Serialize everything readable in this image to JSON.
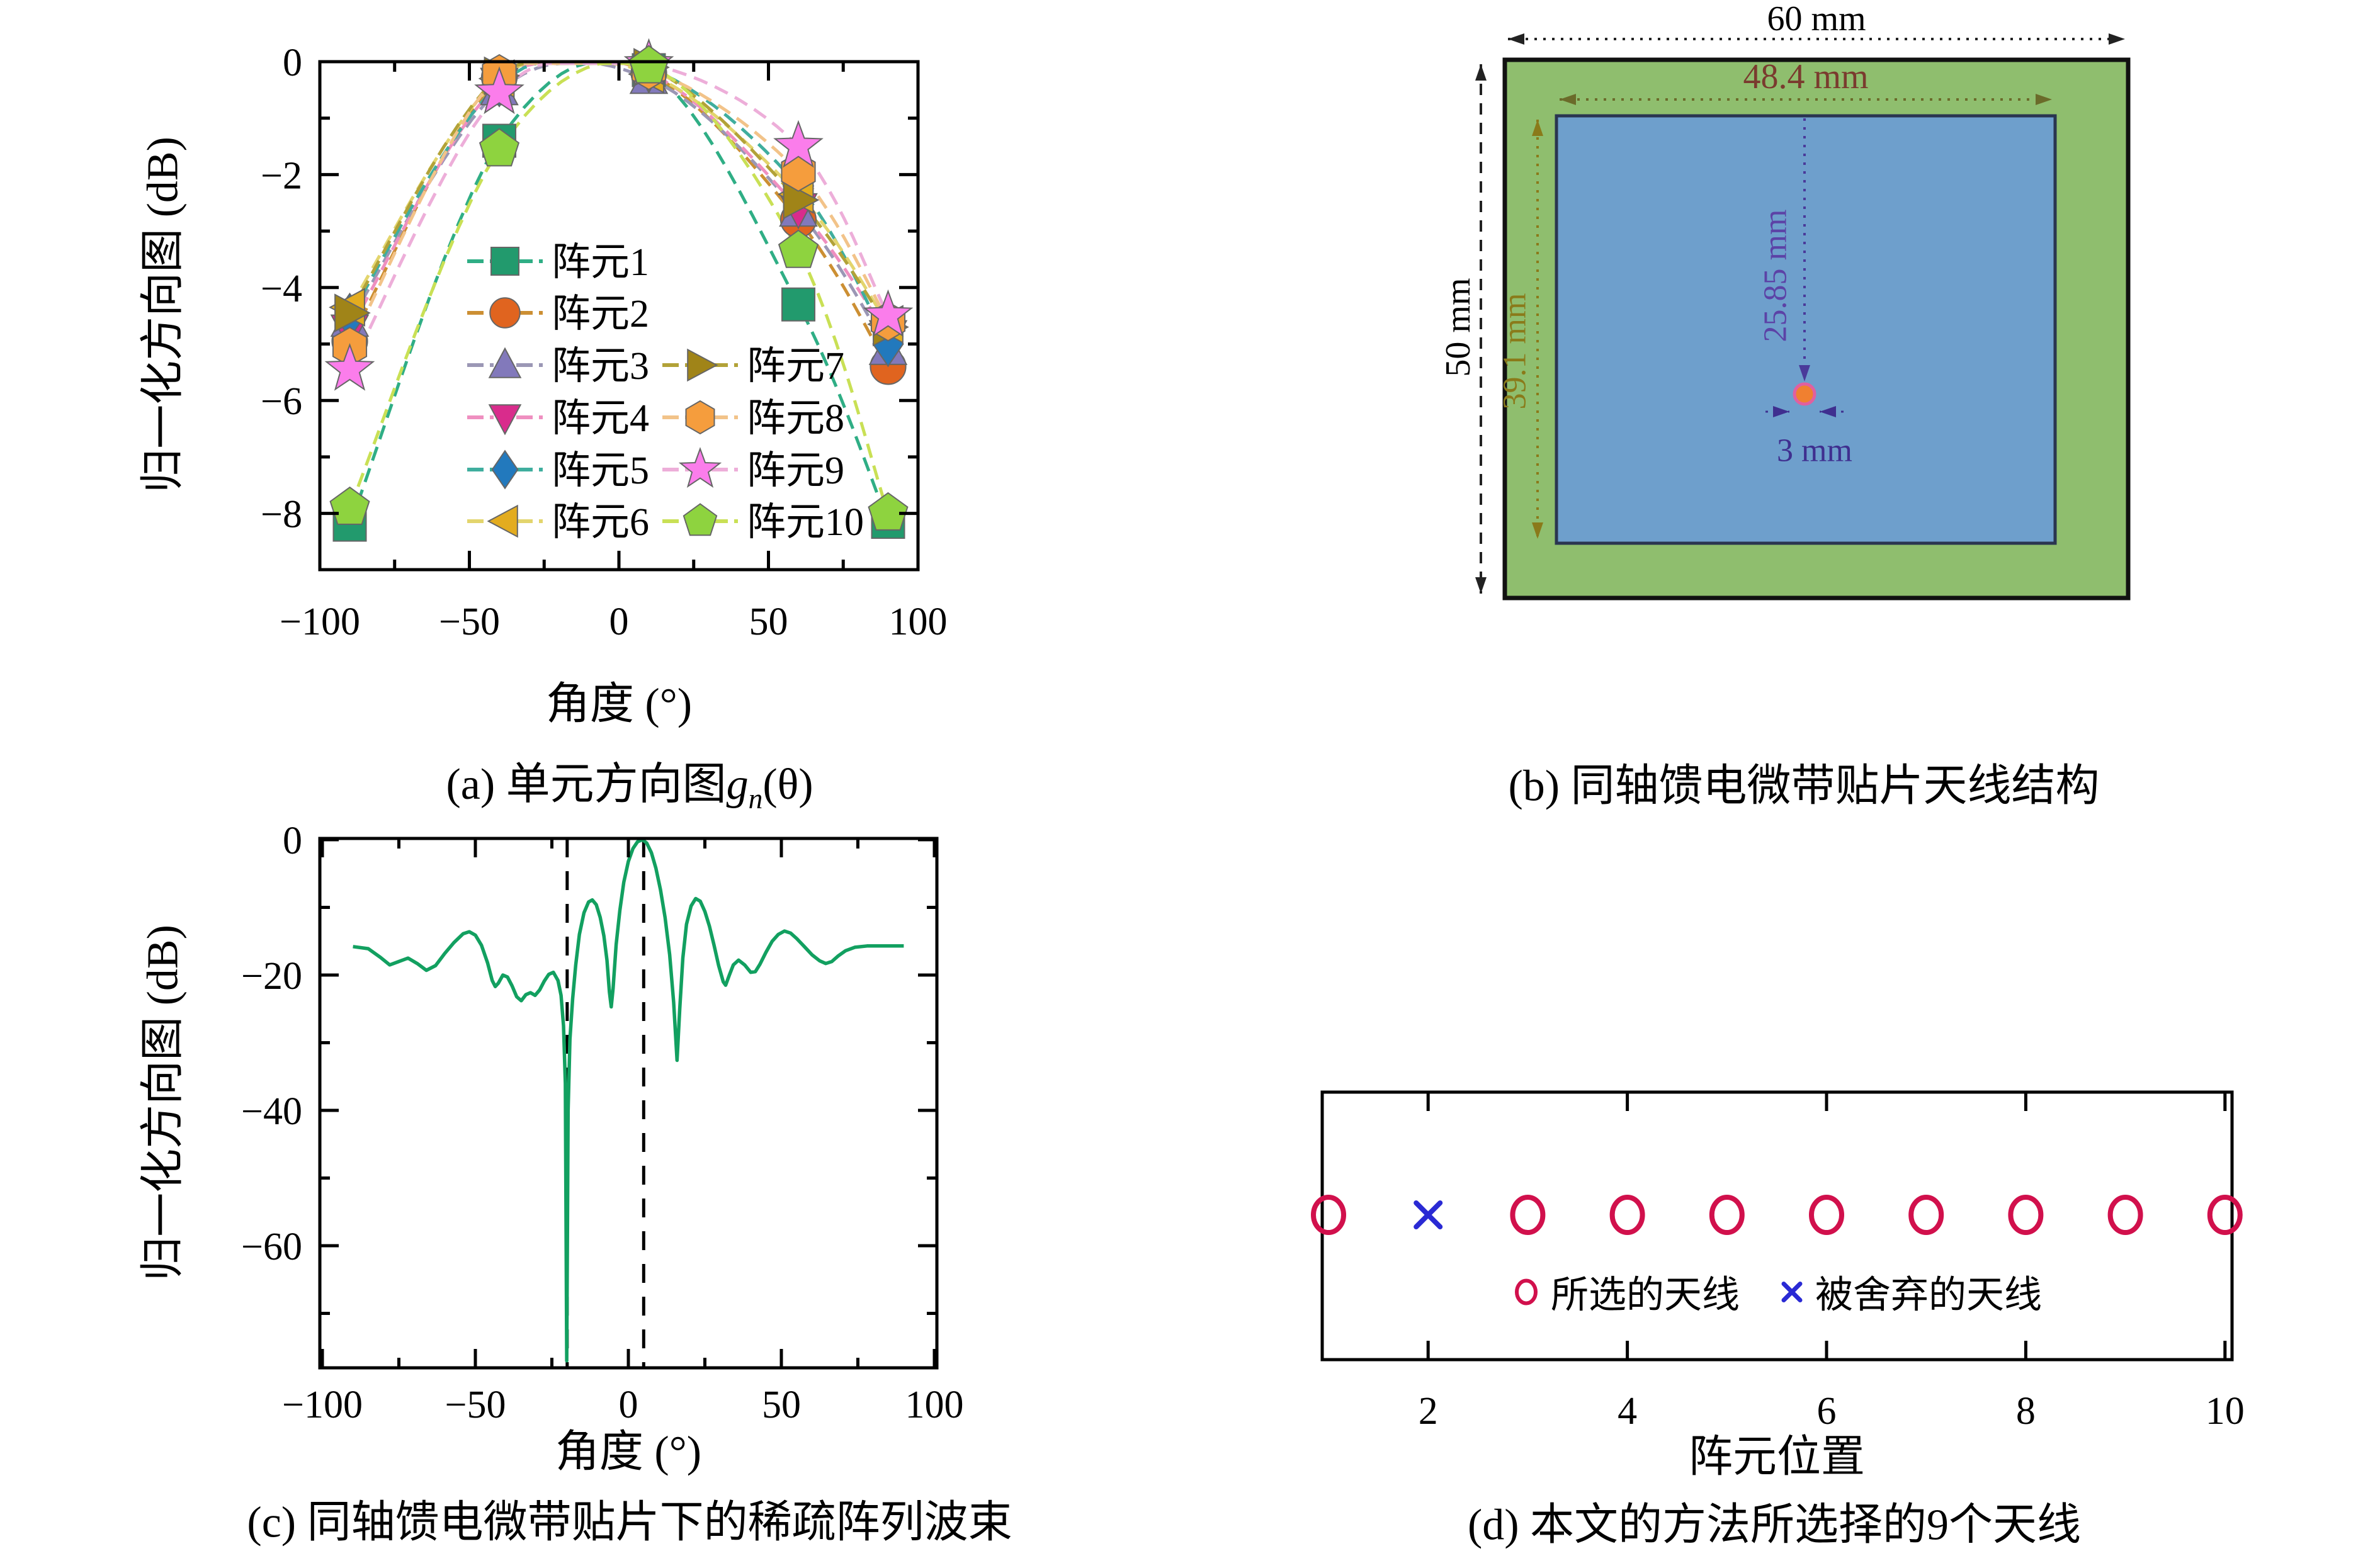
{
  "chart_data": [
    {
      "id": "a",
      "type": "line",
      "title": "(a) 单元方向图gn(θ)",
      "xlabel": "角度 (°)",
      "ylabel": "归一化方向图 (dB)",
      "xlim": [
        -100,
        100
      ],
      "ylim": [
        -9,
        0
      ],
      "xticks": [
        -100,
        -50,
        0,
        50,
        100
      ],
      "yticks": [
        0,
        -2,
        -4,
        -6,
        -8
      ],
      "minor_xticks": [
        -75,
        -25,
        25,
        75
      ],
      "minor_yticks": [
        -1,
        -3,
        -5,
        -7
      ],
      "grid": false,
      "legend_position": "inside-center",
      "x": [
        -90,
        -40,
        10,
        60,
        90
      ],
      "series": [
        {
          "name": "阵元1",
          "marker": "square",
          "color": "#229a6d",
          "line_color": "#2fae85",
          "values": [
            -8.2,
            -1.4,
            -0.15,
            -4.3,
            -8.15
          ]
        },
        {
          "name": "阵元2",
          "marker": "circle",
          "color": "#e0641f",
          "line_color": "#cc8f33",
          "values": [
            -4.95,
            -0.28,
            -0.2,
            -2.8,
            -5.4
          ]
        },
        {
          "name": "阵元3",
          "marker": "triangle-up",
          "color": "#8279bb",
          "line_color": "#9b97b5",
          "values": [
            -4.6,
            -0.5,
            -0.3,
            -2.65,
            -5.1
          ]
        },
        {
          "name": "阵元4",
          "marker": "triangle-down",
          "color": "#d92c8c",
          "line_color": "#ef8fc0",
          "values": [
            -4.75,
            -0.38,
            -0.2,
            -2.6,
            -4.85
          ]
        },
        {
          "name": "阵元5",
          "marker": "diamond",
          "color": "#2279bd",
          "line_color": "#3fae9e",
          "values": [
            -4.5,
            -0.4,
            -0.12,
            -2.2,
            -5.0
          ]
        },
        {
          "name": "阵元6",
          "marker": "triangle-left",
          "color": "#e3ac1f",
          "line_color": "#e3d56d",
          "values": [
            -4.35,
            -0.3,
            -0.22,
            -2.35,
            -4.65
          ]
        },
        {
          "name": "阵元7",
          "marker": "triangle-right",
          "color": "#a08418",
          "line_color": "#b2a238",
          "values": [
            -4.45,
            -0.25,
            -0.1,
            -2.45,
            -4.7
          ]
        },
        {
          "name": "阵元8",
          "marker": "hexagon",
          "color": "#f59d3d",
          "line_color": "#f2c389",
          "values": [
            -5.05,
            -0.22,
            -0.15,
            -1.95,
            -4.6
          ]
        },
        {
          "name": "阵元9",
          "marker": "star",
          "color": "#fb7deb",
          "line_color": "#edaed9",
          "values": [
            -5.45,
            -0.55,
            -0.05,
            -1.5,
            -4.5
          ]
        },
        {
          "name": "阵元10",
          "marker": "pentagon",
          "color": "#8ed33f",
          "line_color": "#c9e055",
          "values": [
            -7.9,
            -1.55,
            -0.08,
            -3.35,
            -8.0
          ]
        }
      ]
    },
    {
      "id": "c",
      "type": "line",
      "title": "(c) 同轴馈电微带贴片下的稀疏阵列波束",
      "xlabel": "角度 (°)",
      "ylabel": "归一化方向图 (dB)",
      "xlim": [
        -100,
        100
      ],
      "ylim": [
        -78,
        0
      ],
      "xticks": [
        -100,
        -50,
        0,
        50,
        100
      ],
      "yticks": [
        0,
        -20,
        -40,
        -60
      ],
      "minor_xticks": [
        -75,
        -25,
        25,
        75
      ],
      "minor_yticks": [
        -10,
        -30,
        -50,
        -70
      ],
      "grid": false,
      "dashed_vlines": [
        -20,
        5
      ],
      "series": [
        {
          "name": "稀疏阵列波束",
          "color": "#12a060",
          "points": [
            [
              -90,
              -15.8
            ],
            [
              -85,
              -16.1
            ],
            [
              -81,
              -17.4
            ],
            [
              -78,
              -18.5
            ],
            [
              -75,
              -18.0
            ],
            [
              -72,
              -17.5
            ],
            [
              -69,
              -18.3
            ],
            [
              -66,
              -19.3
            ],
            [
              -63,
              -18.6
            ],
            [
              -60,
              -16.8
            ],
            [
              -57,
              -15.2
            ],
            [
              -54,
              -13.9
            ],
            [
              -52,
              -13.6
            ],
            [
              -50,
              -14.1
            ],
            [
              -48,
              -15.6
            ],
            [
              -46,
              -18.2
            ],
            [
              -44.5,
              -20.8
            ],
            [
              -43.5,
              -21.7
            ],
            [
              -42.5,
              -21.2
            ],
            [
              -41,
              -20.0
            ],
            [
              -39.5,
              -20.3
            ],
            [
              -38,
              -21.6
            ],
            [
              -36.5,
              -23.2
            ],
            [
              -35,
              -23.8
            ],
            [
              -33.5,
              -22.9
            ],
            [
              -32,
              -22.6
            ],
            [
              -30.5,
              -23.0
            ],
            [
              -29,
              -22.2
            ],
            [
              -27.5,
              -20.9
            ],
            [
              -26,
              -19.9
            ],
            [
              -24.5,
              -19.6
            ],
            [
              -23,
              -20.8
            ],
            [
              -22,
              -23.0
            ],
            [
              -21.2,
              -27.5
            ],
            [
              -20.6,
              -36
            ],
            [
              -20.15,
              -77
            ],
            [
              -19.7,
              -40
            ],
            [
              -19.1,
              -29.5
            ],
            [
              -18.2,
              -23.5
            ],
            [
              -17.2,
              -18.5
            ],
            [
              -16,
              -14.0
            ],
            [
              -14.5,
              -10.8
            ],
            [
              -13,
              -9.2
            ],
            [
              -11.8,
              -8.9
            ],
            [
              -10.5,
              -9.6
            ],
            [
              -9.2,
              -11.5
            ],
            [
              -8,
              -14.2
            ],
            [
              -7,
              -17.8
            ],
            [
              -6.2,
              -22.5
            ],
            [
              -5.6,
              -24.7
            ],
            [
              -5,
              -22.0
            ],
            [
              -4,
              -15.5
            ],
            [
              -2.8,
              -10.5
            ],
            [
              -1.5,
              -6.3
            ],
            [
              0,
              -3.2
            ],
            [
              1.5,
              -1.3
            ],
            [
              3,
              -0.3
            ],
            [
              4.6,
              0
            ],
            [
              6,
              -0.5
            ],
            [
              7.5,
              -1.9
            ],
            [
              9,
              -4.2
            ],
            [
              10.5,
              -7.4
            ],
            [
              12,
              -11.5
            ],
            [
              13.5,
              -17
            ],
            [
              14.8,
              -24
            ],
            [
              15.9,
              -32.6
            ],
            [
              16.8,
              -25
            ],
            [
              17.8,
              -17.5
            ],
            [
              19,
              -12.5
            ],
            [
              20.5,
              -9.8
            ],
            [
              22,
              -8.7
            ],
            [
              23.5,
              -9.1
            ],
            [
              25,
              -10.6
            ],
            [
              26.5,
              -12.8
            ],
            [
              28,
              -15.6
            ],
            [
              29.5,
              -18.6
            ],
            [
              31,
              -21.0
            ],
            [
              31.8,
              -21.5
            ],
            [
              33,
              -20.0
            ],
            [
              34.3,
              -18.5
            ],
            [
              36,
              -17.8
            ],
            [
              38,
              -18.5
            ],
            [
              40,
              -19.6
            ],
            [
              41.5,
              -19.5
            ],
            [
              43,
              -18.4
            ],
            [
              45,
              -16.6
            ],
            [
              47,
              -15.0
            ],
            [
              49,
              -14.0
            ],
            [
              51,
              -13.5
            ],
            [
              53,
              -13.8
            ],
            [
              55,
              -14.6
            ],
            [
              57.5,
              -15.8
            ],
            [
              60,
              -17.0
            ],
            [
              62.5,
              -17.9
            ],
            [
              64.5,
              -18.3
            ],
            [
              66.5,
              -18.0
            ],
            [
              68.5,
              -17.2
            ],
            [
              71,
              -16.4
            ],
            [
              74,
              -15.9
            ],
            [
              78,
              -15.7
            ],
            [
              83,
              -15.7
            ],
            [
              90,
              -15.7
            ]
          ]
        }
      ]
    },
    {
      "id": "d",
      "type": "scatter",
      "title": "(d) 本文的方法所选择的9个天线",
      "xlabel": "阵元位置",
      "xlim": [
        0.94,
        10.1
      ],
      "xticks": [
        2,
        4,
        6,
        8,
        10
      ],
      "legend_position": "inside-bottom",
      "series": [
        {
          "name": "所选的天线",
          "marker": "circle",
          "color": "#d1104c",
          "x": [
            1,
            3,
            4,
            5,
            6,
            7,
            8,
            9,
            10
          ]
        },
        {
          "name": "被舍弃的天线",
          "marker": "x",
          "color": "#2a2ad4",
          "x": [
            2
          ]
        }
      ]
    }
  ],
  "panels": {
    "a": {
      "caption_prefix": "(a) 单元方向图",
      "caption_math": "g",
      "caption_sub": "n",
      "caption_suffix": "(θ)",
      "xlabel": "角度 (°)",
      "ylabel": "归一化方向图 (dB)",
      "xtick_labels": [
        "−100",
        "−50",
        "0",
        "50",
        "100"
      ],
      "ytick_labels": [
        "0",
        "−2",
        "−4",
        "−6",
        "−8"
      ]
    },
    "b": {
      "caption": "(b) 同轴馈电微带贴片天线结构",
      "dims": {
        "substrate_width": "60 mm",
        "patch_width": "48.4 mm",
        "substrate_height": "50 mm",
        "patch_height": "39.1 mm",
        "feed_offset": "25.85 mm",
        "feed_diameter": "3 mm"
      },
      "colors": {
        "substrate": "#8fbe6e",
        "patch": "#6e9fcc",
        "feed": "#f08030",
        "feed_ring": "#e060a0",
        "patch_width_text": "#7a3b2e",
        "patch_height_text": "#8a7a1a",
        "feed_offset_text": "#5c42a6",
        "feed_diameter_text": "#3f2f8f"
      }
    },
    "c": {
      "caption": "(c) 同轴馈电微带贴片下的稀疏阵列波束",
      "xlabel": "角度 (°)",
      "ylabel": "归一化方向图 (dB)",
      "xtick_labels": [
        "−100",
        "−50",
        "0",
        "50",
        "100"
      ],
      "ytick_labels": [
        "0",
        "−20",
        "−40",
        "−60"
      ]
    },
    "d": {
      "caption": "(d) 本文的方法所选择的9个天线",
      "xlabel": "阵元位置",
      "xtick_labels": [
        "2",
        "4",
        "6",
        "8",
        "10"
      ],
      "legend": {
        "selected": "所选的天线",
        "discarded": "被舍弃的天线"
      }
    }
  }
}
